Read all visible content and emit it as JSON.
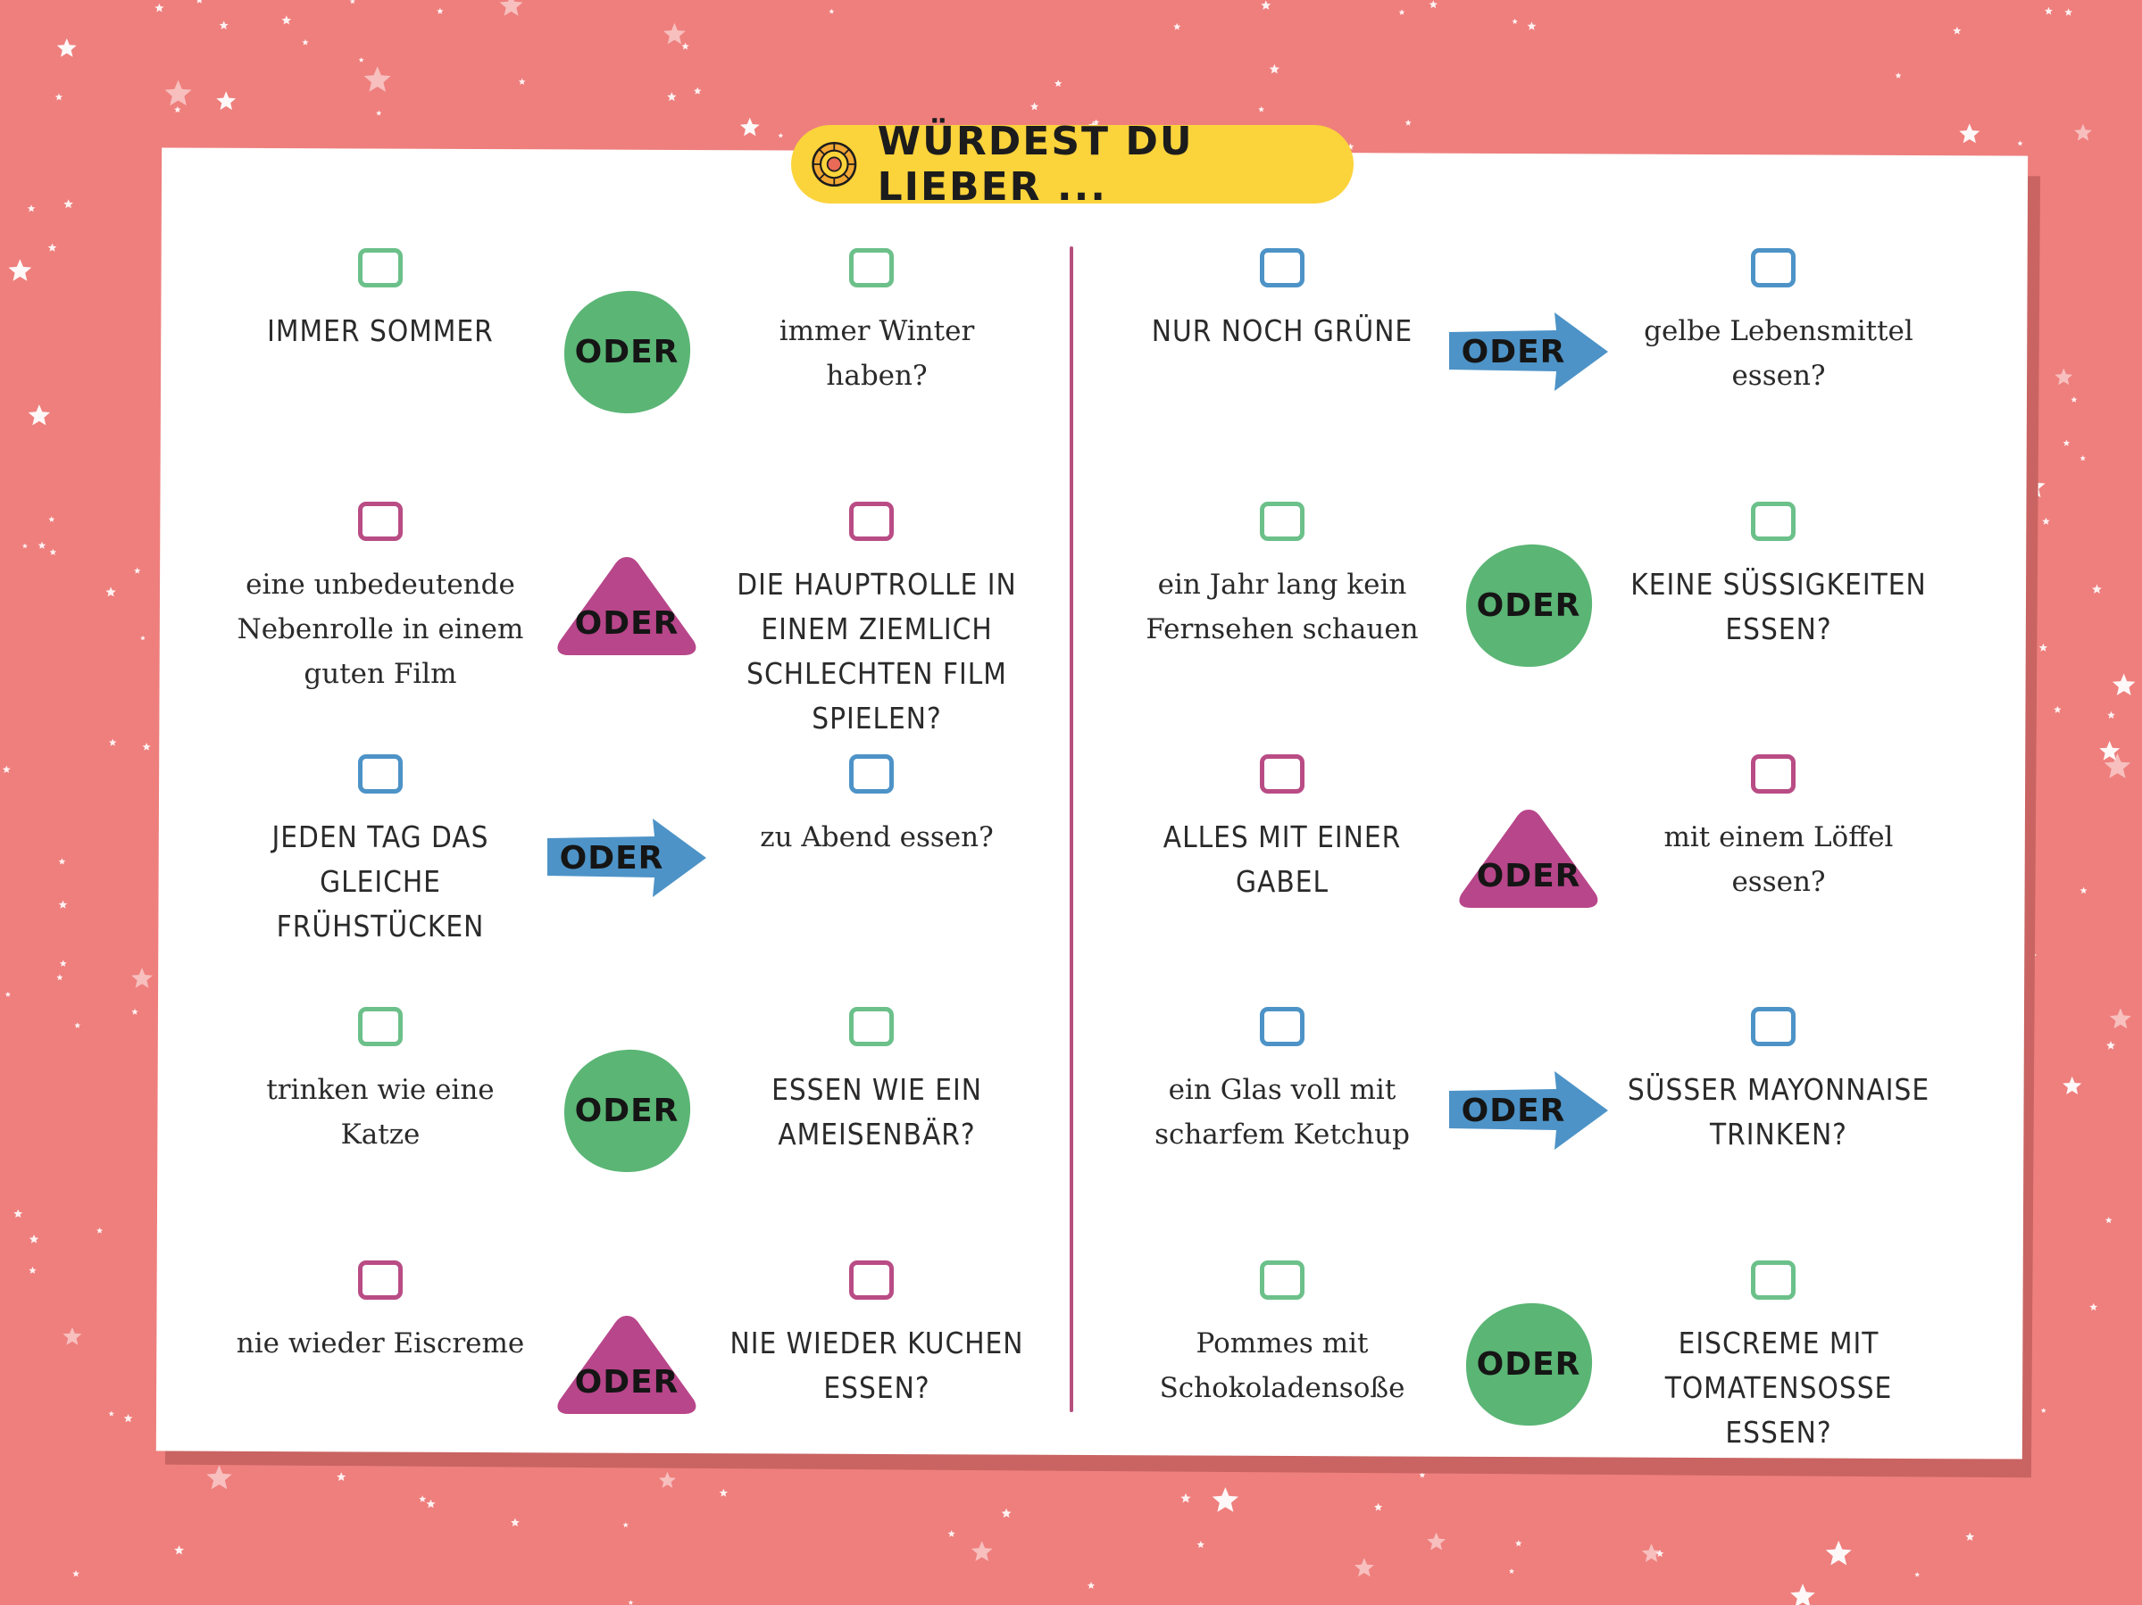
{
  "title": "WÜRDEST DU LIEBER ...",
  "colors": {
    "background": "#ee7f7d",
    "banner": "#fbd33b",
    "green": "#5bb575",
    "pink": "#b8468a",
    "blue": "#4d93c7",
    "divider": "#b5507e"
  },
  "connector_label": "ODER",
  "left_column": [
    {
      "left": "IMMER SOMMER",
      "right": "immer Winter haben?",
      "shape": "circle",
      "color": "green"
    },
    {
      "left": "eine unbedeutende Nebenrolle in einem guten Film",
      "right": "DIE HAUPTROLLE IN EINEM ZIEMLICH SCHLECHTEN FILM SPIELEN?",
      "shape": "triangle",
      "color": "pink"
    },
    {
      "left": "JEDEN TAG DAS GLEICHE FRÜHSTÜCKEN",
      "right": "zu Abend essen?",
      "shape": "arrow",
      "color": "blue"
    },
    {
      "left": "trinken wie eine Katze",
      "right": "ESSEN WIE EIN AMEISENBÄR?",
      "shape": "circle",
      "color": "green"
    },
    {
      "left": "nie wieder Eiscreme",
      "right": "NIE WIEDER KUCHEN ESSEN?",
      "shape": "triangle",
      "color": "pink"
    }
  ],
  "right_column": [
    {
      "left": "NUR NOCH GRÜNE",
      "right": "gelbe Lebensmittel essen?",
      "shape": "arrow",
      "color": "blue"
    },
    {
      "left": "ein Jahr lang kein Fernsehen schauen",
      "right": "KEINE SÜSSIGKEITEN ESSEN?",
      "shape": "circle",
      "color": "green"
    },
    {
      "left": "ALLES MIT EINER GABEL",
      "right": "mit einem Löffel essen?",
      "shape": "triangle",
      "color": "pink"
    },
    {
      "left": "ein Glas voll mit scharfem Ketchup",
      "right": "SÜSSER MAYONNAISE TRINKEN?",
      "shape": "arrow",
      "color": "blue"
    },
    {
      "left": "Pommes mit Schokoladensoße",
      "right": "EISCREME MIT TOMATENSOSSE ESSEN?",
      "shape": "circle",
      "color": "green"
    }
  ]
}
